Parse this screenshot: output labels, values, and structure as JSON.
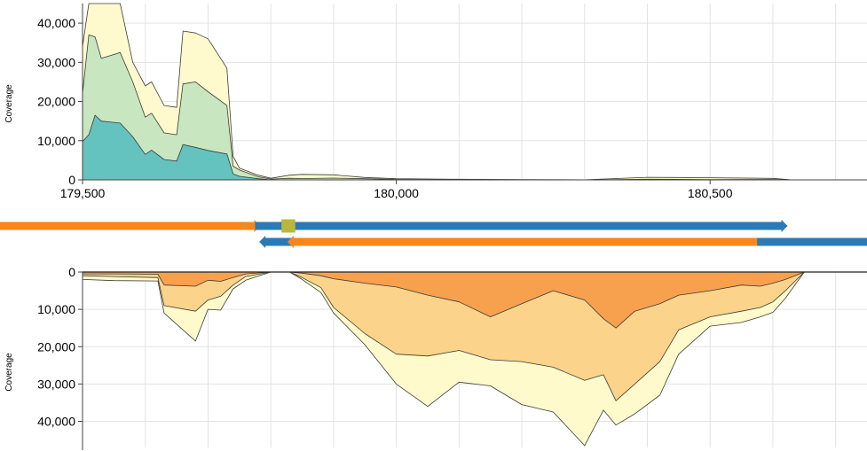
{
  "chart_data": [
    {
      "type": "area",
      "name": "forward-coverage",
      "ylabel": "Coverage",
      "x_ticks": [
        "179,500",
        "180,000",
        "180,500"
      ],
      "y_ticks": [
        "0",
        "10,000",
        "20,000",
        "30,000",
        "40,000"
      ],
      "xlim": [
        179500,
        180750
      ],
      "ylim": [
        0,
        45000
      ],
      "grid": true,
      "series": [
        {
          "color": "#64c3be",
          "x": [
            179500,
            179510,
            179520,
            179530,
            179560,
            179580,
            179600,
            179610,
            179630,
            179650,
            179660,
            179680,
            179700,
            179730,
            179740,
            179750,
            179780,
            179800,
            179830,
            179850
          ],
          "y": [
            9800,
            11500,
            16500,
            15000,
            14500,
            11000,
            6500,
            7600,
            5200,
            4800,
            9000,
            8300,
            7500,
            6600,
            1500,
            900,
            300,
            0,
            0,
            0
          ]
        },
        {
          "color": "#c8e6c0",
          "x": [
            179500,
            179510,
            179520,
            179530,
            179560,
            179580,
            179600,
            179610,
            179630,
            179650,
            179660,
            179680,
            179700,
            179730,
            179740,
            179750,
            179780,
            179800,
            179830,
            179850,
            179900,
            179950,
            180000,
            180100,
            180200,
            180300,
            180400,
            180500,
            180600,
            180630
          ],
          "y": [
            22000,
            37000,
            36500,
            31000,
            32500,
            25000,
            16000,
            17000,
            12000,
            11500,
            24500,
            25000,
            22500,
            19000,
            3500,
            2500,
            800,
            200,
            400,
            350,
            450,
            300,
            120,
            50,
            20,
            10,
            150,
            100,
            120,
            0
          ]
        },
        {
          "color": "#fffacd",
          "x": [
            179500,
            179510,
            179520,
            179530,
            179560,
            179580,
            179600,
            179610,
            179630,
            179650,
            179660,
            179680,
            179700,
            179730,
            179740,
            179750,
            179780,
            179800,
            179830,
            179850,
            179900,
            179950,
            180000,
            180100,
            180200,
            180300,
            180400,
            180500,
            180600,
            180630
          ],
          "y": [
            34000,
            45000,
            45000,
            45000,
            45000,
            30000,
            24000,
            25000,
            19000,
            18500,
            38000,
            37500,
            36000,
            28500,
            6000,
            3000,
            1200,
            400,
            1200,
            1400,
            1300,
            600,
            300,
            150,
            60,
            20,
            650,
            550,
            380,
            0
          ]
        }
      ]
    },
    {
      "type": "area",
      "name": "reverse-coverage",
      "ylabel": "Coverage",
      "y_ticks": [
        "0",
        "10,000",
        "20,000",
        "30,000",
        "40,000"
      ],
      "xlim": [
        179500,
        180750
      ],
      "ylim": [
        0,
        47000
      ],
      "inverted": true,
      "grid": true,
      "series": [
        {
          "color": "#f7a14e",
          "x": [
            179500,
            179550,
            179620,
            179630,
            179680,
            179700,
            179720,
            179740,
            179760,
            179800,
            179830,
            179850,
            179880,
            179900,
            179950,
            180000,
            180050,
            180100,
            180150,
            180200,
            180250,
            180300,
            180330,
            180350,
            180380,
            180420,
            180450,
            180500,
            180550,
            180580,
            180600,
            180620,
            180650
          ],
          "y": [
            500,
            500,
            600,
            3500,
            3800,
            2200,
            2500,
            1500,
            500,
            0,
            0,
            300,
            1000,
            1800,
            3000,
            4000,
            6200,
            8000,
            12000,
            8500,
            5000,
            7500,
            12500,
            15000,
            10500,
            8500,
            6200,
            5000,
            3500,
            3800,
            3000,
            2000,
            0
          ]
        },
        {
          "color": "#fcd38a",
          "x": [
            179500,
            179550,
            179620,
            179630,
            179680,
            179700,
            179720,
            179740,
            179760,
            179800,
            179830,
            179850,
            179880,
            179900,
            179950,
            180000,
            180050,
            180100,
            180150,
            180200,
            180250,
            180300,
            180330,
            180350,
            180380,
            180420,
            180450,
            180500,
            180550,
            180580,
            180600,
            180620,
            180650
          ],
          "y": [
            1000,
            1200,
            1500,
            9000,
            10500,
            7500,
            6500,
            3500,
            1200,
            0,
            0,
            1500,
            4200,
            9500,
            16500,
            22000,
            22500,
            21000,
            23500,
            24000,
            25500,
            29000,
            27500,
            34500,
            30000,
            24000,
            15500,
            12000,
            10500,
            9500,
            8000,
            5000,
            0
          ]
        },
        {
          "color": "#fefacc",
          "x": [
            179500,
            179550,
            179620,
            179630,
            179680,
            179700,
            179720,
            179740,
            179760,
            179800,
            179830,
            179850,
            179880,
            179900,
            179950,
            180000,
            180050,
            180100,
            180150,
            180200,
            180250,
            180300,
            180330,
            180350,
            180380,
            180420,
            180450,
            180500,
            180550,
            180580,
            180600,
            180620,
            180650
          ],
          "y": [
            2000,
            2300,
            2400,
            11000,
            18500,
            10000,
            10200,
            4500,
            2200,
            0,
            0,
            2000,
            5500,
            11000,
            19500,
            30000,
            36000,
            29500,
            30500,
            35500,
            37500,
            46500,
            37000,
            41000,
            38000,
            33000,
            22000,
            14500,
            13500,
            12000,
            10800,
            7000,
            0
          ]
        }
      ]
    }
  ],
  "tracks": [
    {
      "name": "track-orange-left",
      "direction": "right",
      "color": "#f7861c",
      "start": 179250,
      "end": 179775,
      "row": 0
    },
    {
      "name": "track-blue-long",
      "direction": "right",
      "color": "#2a7ab7",
      "start": 179775,
      "end": 180615,
      "row": 0
    },
    {
      "name": "track-yellow-block",
      "direction": "none",
      "color": "#b8b83a",
      "start": 179817,
      "end": 179839,
      "row": 0
    },
    {
      "name": "track-blue-reverse",
      "direction": "left",
      "color": "#2a7ab7",
      "start": 179790,
      "end": 180750,
      "row": 1
    },
    {
      "name": "track-orange-reverse",
      "direction": "left",
      "color": "#f7861c",
      "start": 179835,
      "end": 180575,
      "row": 1
    }
  ]
}
